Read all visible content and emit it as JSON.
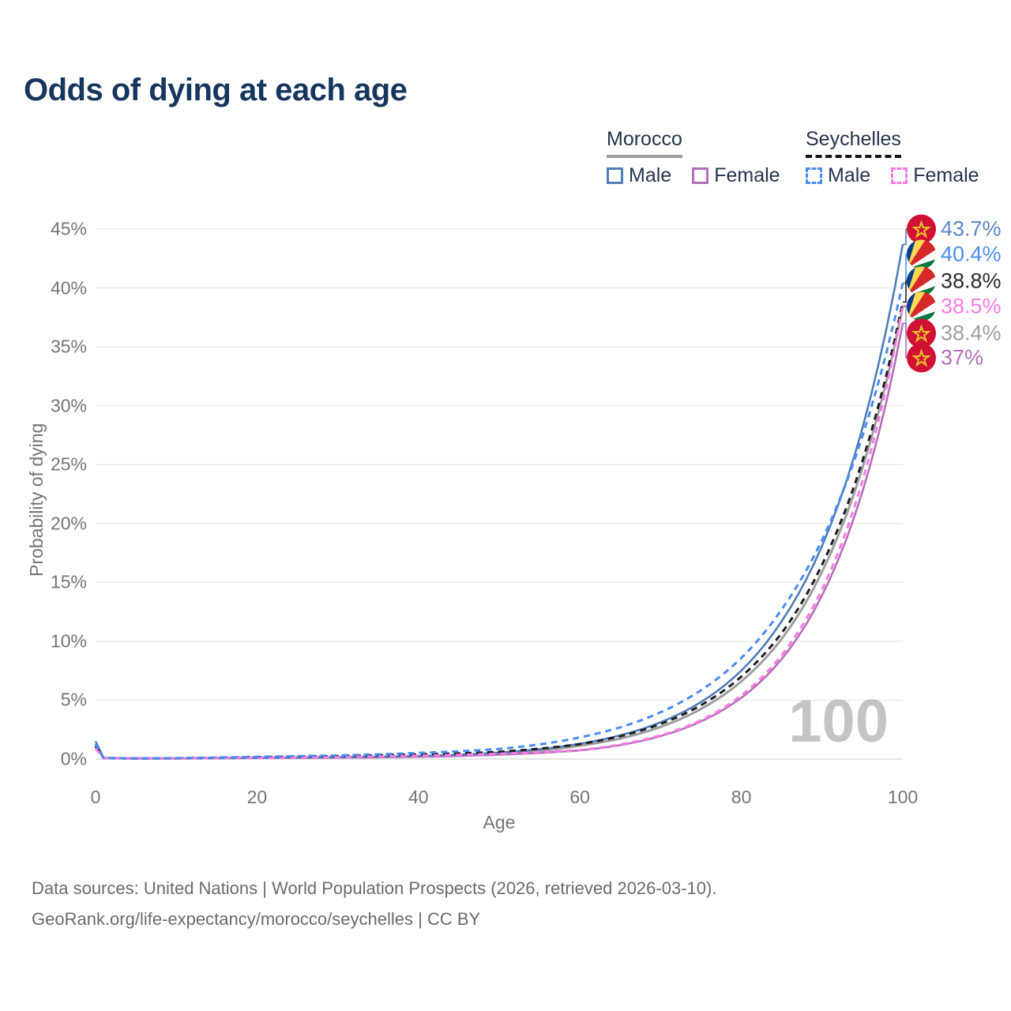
{
  "title": "Odds of dying at each age",
  "legend": {
    "groups": [
      {
        "label": "Morocco",
        "line_style": "solid",
        "underline_color": "#9a9a9a",
        "items": [
          {
            "label": "Male",
            "color": "#4f7dba",
            "dashed": false
          },
          {
            "label": "Female",
            "color": "#b36fb8",
            "dashed": false
          }
        ]
      },
      {
        "label": "Seychelles",
        "line_style": "dashed",
        "underline_color": "#161616",
        "items": [
          {
            "label": "Male",
            "color": "#4a8df2",
            "dashed": true
          },
          {
            "label": "Female",
            "color": "#fa7be5",
            "dashed": true
          }
        ]
      }
    ]
  },
  "chart_data": {
    "type": "line",
    "title": "Odds of dying at each age",
    "xlabel": "Age",
    "ylabel": "Probability of dying",
    "xlim": [
      0,
      100
    ],
    "ylim": [
      0,
      45
    ],
    "grid": "horizontal",
    "legend_position": "top-right",
    "watermark": "100",
    "xticks": [
      0,
      20,
      40,
      60,
      80,
      100
    ],
    "yticks": [
      {
        "pct": 0,
        "label": "0%"
      },
      {
        "pct": 5,
        "label": "5%"
      },
      {
        "pct": 10,
        "label": "10%"
      },
      {
        "pct": 15,
        "label": "15%"
      },
      {
        "pct": 20,
        "label": "20%"
      },
      {
        "pct": 25,
        "label": "25%"
      },
      {
        "pct": 30,
        "label": "30%"
      },
      {
        "pct": 35,
        "label": "35%"
      },
      {
        "pct": 40,
        "label": "40%"
      },
      {
        "pct": 45,
        "label": "45%"
      }
    ],
    "x": [
      0,
      1,
      5,
      10,
      15,
      20,
      25,
      30,
      35,
      40,
      45,
      50,
      55,
      60,
      65,
      70,
      75,
      80,
      85,
      90,
      95,
      100
    ],
    "series": [
      {
        "name": "Morocco Both",
        "country": "morocco",
        "sex": "both",
        "color": "#9e9e9e",
        "dashed": false,
        "width": 3,
        "values": [
          1.2,
          0.09,
          0.05,
          0.06,
          0.08,
          0.1,
          0.12,
          0.14,
          0.17,
          0.22,
          0.31,
          0.45,
          0.7,
          1.14,
          1.74,
          2.73,
          4.25,
          6.6,
          10.2,
          15.9,
          24.7,
          38.4
        ]
      },
      {
        "name": "Morocco Female",
        "country": "morocco",
        "sex": "female",
        "color": "#b36fb8",
        "dashed": false,
        "width": 2.6,
        "values": [
          1.1,
          0.08,
          0.05,
          0.05,
          0.07,
          0.09,
          0.1,
          0.12,
          0.15,
          0.19,
          0.26,
          0.37,
          0.52,
          0.73,
          1.18,
          1.95,
          3.2,
          5.2,
          8.5,
          13.9,
          22.7,
          37.0
        ]
      },
      {
        "name": "Morocco Male",
        "country": "morocco",
        "sex": "male",
        "color": "#4f7dba",
        "dashed": false,
        "width": 2.6,
        "values": [
          1.5,
          0.1,
          0.06,
          0.06,
          0.09,
          0.12,
          0.14,
          0.16,
          0.2,
          0.26,
          0.37,
          0.55,
          0.83,
          1.3,
          2.01,
          3.12,
          4.84,
          7.51,
          11.7,
          18.1,
          28.1,
          43.7
        ]
      },
      {
        "name": "Seychelles Both",
        "country": "seychelles",
        "sex": "both",
        "color": "#1f1f1f",
        "dashed": true,
        "width": 3,
        "values": [
          1.1,
          0.08,
          0.05,
          0.07,
          0.11,
          0.16,
          0.2,
          0.25,
          0.32,
          0.4,
          0.48,
          0.62,
          0.88,
          1.27,
          1.94,
          2.98,
          4.57,
          7.0,
          10.7,
          16.5,
          25.3,
          38.8
        ]
      },
      {
        "name": "Seychelles Female",
        "country": "seychelles",
        "sex": "female",
        "color": "#fa7be5",
        "dashed": true,
        "width": 3,
        "values": [
          0.9,
          0.07,
          0.04,
          0.05,
          0.08,
          0.11,
          0.14,
          0.17,
          0.22,
          0.28,
          0.35,
          0.45,
          0.58,
          0.76,
          1.24,
          2.02,
          3.3,
          5.4,
          8.83,
          14.4,
          23.6,
          38.5
        ]
      },
      {
        "name": "Seychelles Male",
        "country": "seychelles",
        "sex": "male",
        "color": "#4a8df2",
        "dashed": true,
        "width": 3,
        "values": [
          1.3,
          0.09,
          0.06,
          0.08,
          0.13,
          0.19,
          0.25,
          0.31,
          0.4,
          0.52,
          0.66,
          0.86,
          1.24,
          1.84,
          2.69,
          3.97,
          5.84,
          8.58,
          12.7,
          18.6,
          27.4,
          40.4
        ]
      }
    ],
    "end_labels": [
      {
        "value": "43.7%",
        "num": 43.7,
        "flag": "morocco",
        "color": "#5b87c9",
        "series": "Morocco Male"
      },
      {
        "value": "40.4%",
        "num": 40.4,
        "flag": "seychelles",
        "color": "#4a8df2",
        "series": "Seychelles Male"
      },
      {
        "value": "38.8%",
        "num": 38.8,
        "flag": "seychelles",
        "color": "#2b2b2b",
        "series": "Seychelles Both"
      },
      {
        "value": "38.5%",
        "num": 38.5,
        "flag": "seychelles",
        "color": "#fa7be5",
        "series": "Seychelles Female"
      },
      {
        "value": "38.4%",
        "num": 38.4,
        "flag": "morocco",
        "color": "#9e9e9e",
        "series": "Morocco Both"
      },
      {
        "value": "37%",
        "num": 37.0,
        "flag": "morocco",
        "color": "#b36fb8",
        "series": "Morocco Female"
      }
    ]
  },
  "footer": {
    "line1": "Data sources: United Nations | World Population Prospects (2026, retrieved 2026-03-10).",
    "line2": "GeoRank.org/life-expectancy/morocco/seychelles | CC BY"
  }
}
